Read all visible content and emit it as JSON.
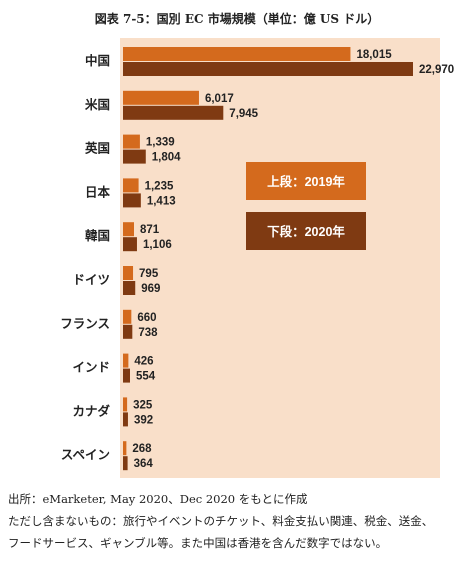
{
  "title": "図表 7-5：国別 EC 市場規模（単位：億 US ドル）",
  "colors": {
    "panel": "#f9dfc9",
    "series_2019": "#d46a1d",
    "series_2020": "#7f3a12",
    "value_text": "#222222"
  },
  "chart_data": {
    "type": "bar",
    "orientation": "horizontal",
    "categories": [
      "中国",
      "米国",
      "英国",
      "日本",
      "韓国",
      "ドイツ",
      "フランス",
      "インド",
      "カナダ",
      "スペイン"
    ],
    "series": [
      {
        "name": "上段：2019年",
        "values": [
          18015,
          6017,
          1339,
          1235,
          871,
          795,
          660,
          426,
          325,
          268
        ]
      },
      {
        "name": "下段：2020年",
        "values": [
          22970,
          7945,
          1804,
          1413,
          1106,
          969,
          738,
          554,
          392,
          364
        ]
      }
    ],
    "value_labels": [
      [
        "18,015",
        "6,017",
        "1,339",
        "1,235",
        "871",
        "795",
        "660",
        "426",
        "325",
        "268"
      ],
      [
        "22,970",
        "7,945",
        "1,804",
        "1,413",
        "1,106",
        "969",
        "738",
        "554",
        "392",
        "364"
      ]
    ],
    "legend_placement": "center-right",
    "grid": false
  },
  "notes": [
    "出所：eMarketer, May 2020、Dec 2020 をもとに作成",
    "ただし含まないもの：旅行やイベントのチケット、料金支払い関連、税金、送金、",
    "フードサービス、ギャンブル等。また中国は香港を含んだ数字ではない。"
  ]
}
